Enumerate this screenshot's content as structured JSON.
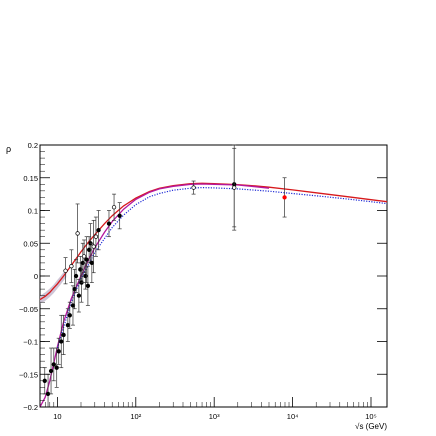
{
  "chart_data": {
    "type": "scatter",
    "title": "",
    "ylabel": "ρ",
    "xlabel": "√s (GeV)",
    "xscale": "log",
    "xlim": [
      6,
      160000
    ],
    "ylim": [
      -0.2,
      0.2
    ],
    "grid": false,
    "legend": "none",
    "y_ticks": [
      {
        "value": -0.2,
        "label": "−0.2"
      },
      {
        "value": -0.15,
        "label": "−0.15"
      },
      {
        "value": -0.1,
        "label": "−0.1"
      },
      {
        "value": -0.05,
        "label": "−0.05"
      },
      {
        "value": 0,
        "label": "0"
      },
      {
        "value": 0.05,
        "label": "0.05"
      },
      {
        "value": 0.1,
        "label": "0.1"
      },
      {
        "value": 0.15,
        "label": "0.15"
      },
      {
        "value": 0.2,
        "label": "0.2"
      }
    ],
    "x_ticks": [
      {
        "value": 10,
        "label": "10"
      },
      {
        "value": 100,
        "label": "10²"
      },
      {
        "value": 1000,
        "label": "10³"
      },
      {
        "value": 10000,
        "label": "10⁴"
      },
      {
        "value": 100000,
        "label": "10⁵"
      }
    ],
    "colors": {
      "axis": "#000000",
      "model_red": "#d7191c",
      "model_magenta": "#b5179e",
      "model_blue_dotted": "#1f2bd6",
      "band": "#c9bfd3",
      "data_filled": "#000000",
      "data_open": "#ffffff",
      "data_highlight": "#ff0000"
    },
    "series": [
      {
        "style": "solid",
        "color_key": "model_red",
        "x": [
          6,
          7,
          8,
          9,
          10,
          12,
          15,
          20,
          25,
          30,
          40,
          50,
          70,
          100,
          150,
          200,
          300,
          500,
          700,
          1000,
          2000,
          3000,
          5000,
          10000,
          20000,
          50000,
          100000,
          160000
        ],
        "y": [
          -0.036,
          -0.031,
          -0.025,
          -0.018,
          -0.012,
          0.0,
          0.016,
          0.037,
          0.052,
          0.063,
          0.08,
          0.092,
          0.107,
          0.119,
          0.129,
          0.134,
          0.138,
          0.141,
          0.1415,
          0.141,
          0.1395,
          0.138,
          0.1355,
          0.1315,
          0.127,
          0.121,
          0.1165,
          0.1135
        ]
      },
      {
        "style": "solid",
        "color_key": "model_magenta",
        "x": [
          6,
          7,
          8,
          9,
          10,
          12,
          15,
          20,
          25,
          30,
          40,
          50,
          70,
          100,
          150,
          200,
          300,
          500,
          700,
          1000,
          2000,
          3000,
          5000
        ],
        "y": [
          -0.205,
          -0.185,
          -0.16,
          -0.133,
          -0.108,
          -0.07,
          -0.035,
          0.0,
          0.025,
          0.043,
          0.067,
          0.083,
          0.102,
          0.117,
          0.128,
          0.133,
          0.137,
          0.14,
          0.1405,
          0.14,
          0.139,
          0.137,
          0.134
        ]
      },
      {
        "style": "dotted",
        "color_key": "model_blue_dotted",
        "x": [
          10,
          15,
          20,
          30,
          50,
          70,
          100,
          150,
          200,
          300,
          500,
          700,
          1000,
          2000,
          3000,
          5000,
          10000,
          20000,
          50000,
          100000,
          160000
        ],
        "y": [
          -0.11,
          -0.04,
          -0.004,
          0.036,
          0.074,
          0.093,
          0.109,
          0.121,
          0.126,
          0.131,
          0.134,
          0.135,
          0.1345,
          0.133,
          0.1315,
          0.1295,
          0.126,
          0.1225,
          0.1175,
          0.1135,
          0.1105
        ]
      }
    ],
    "band": {
      "color_key": "band",
      "x": [
        6,
        7,
        8,
        9,
        10,
        11,
        12,
        13
      ],
      "y_low": [
        -0.042,
        -0.038,
        -0.032,
        -0.026,
        -0.019,
        -0.013,
        -0.007,
        -0.002
      ],
      "y_high": [
        -0.03,
        -0.025,
        -0.019,
        -0.013,
        -0.006,
        0.0,
        0.006,
        0.011
      ]
    },
    "points": [
      {
        "x": 6.9,
        "y": -0.16,
        "err": 0.02,
        "marker": "filled"
      },
      {
        "x": 7.6,
        "y": -0.18,
        "err": 0.03,
        "marker": "filled"
      },
      {
        "x": 8.3,
        "y": -0.145,
        "err": 0.035,
        "marker": "filled"
      },
      {
        "x": 9.0,
        "y": -0.135,
        "err": 0.025,
        "marker": "filled"
      },
      {
        "x": 9.8,
        "y": -0.14,
        "err": 0.03,
        "marker": "filled"
      },
      {
        "x": 10.4,
        "y": -0.115,
        "err": 0.02,
        "marker": "filled"
      },
      {
        "x": 11.2,
        "y": -0.1,
        "err": 0.04,
        "marker": "filled"
      },
      {
        "x": 12.0,
        "y": -0.09,
        "err": 0.03,
        "marker": "filled"
      },
      {
        "x": 12.7,
        "y": 0.008,
        "err": 0.02,
        "marker": "open"
      },
      {
        "x": 13.6,
        "y": -0.075,
        "err": 0.025,
        "marker": "filled"
      },
      {
        "x": 14.4,
        "y": -0.06,
        "err": 0.02,
        "marker": "filled"
      },
      {
        "x": 15.1,
        "y": 0.015,
        "err": 0.025,
        "marker": "open"
      },
      {
        "x": 15.8,
        "y": -0.045,
        "err": 0.03,
        "marker": "filled"
      },
      {
        "x": 16.6,
        "y": -0.02,
        "err": 0.03,
        "marker": "filled"
      },
      {
        "x": 17.3,
        "y": 0.0,
        "err": 0.025,
        "marker": "filled"
      },
      {
        "x": 18.1,
        "y": 0.065,
        "err": 0.045,
        "marker": "open"
      },
      {
        "x": 18.8,
        "y": -0.03,
        "err": 0.025,
        "marker": "filled"
      },
      {
        "x": 19.6,
        "y": 0.01,
        "err": 0.02,
        "marker": "filled"
      },
      {
        "x": 20.3,
        "y": -0.01,
        "err": 0.03,
        "marker": "filled"
      },
      {
        "x": 21.1,
        "y": 0.02,
        "err": 0.03,
        "marker": "filled"
      },
      {
        "x": 21.9,
        "y": 0.03,
        "err": 0.025,
        "marker": "open"
      },
      {
        "x": 22.8,
        "y": 0.0,
        "err": 0.02,
        "marker": "filled"
      },
      {
        "x": 23.6,
        "y": 0.025,
        "err": 0.035,
        "marker": "filled"
      },
      {
        "x": 24.5,
        "y": -0.015,
        "err": 0.03,
        "marker": "filled"
      },
      {
        "x": 25.4,
        "y": 0.04,
        "err": 0.02,
        "marker": "filled"
      },
      {
        "x": 26.4,
        "y": 0.05,
        "err": 0.03,
        "marker": "filled"
      },
      {
        "x": 27.5,
        "y": 0.02,
        "err": 0.03,
        "marker": "filled"
      },
      {
        "x": 29.0,
        "y": 0.045,
        "err": 0.04,
        "marker": "open"
      },
      {
        "x": 31.0,
        "y": 0.06,
        "err": 0.03,
        "marker": "open"
      },
      {
        "x": 33.5,
        "y": 0.07,
        "err": 0.03,
        "marker": "filled"
      },
      {
        "x": 45.5,
        "y": 0.08,
        "err": 0.02,
        "marker": "filled"
      },
      {
        "x": 52.8,
        "y": 0.105,
        "err": 0.02,
        "marker": "open"
      },
      {
        "x": 62.3,
        "y": 0.092,
        "err": 0.02,
        "marker": "filled"
      },
      {
        "x": 546,
        "y": 0.135,
        "err": 0.01,
        "marker": "open"
      },
      {
        "x": 1800,
        "y": 0.14,
        "err": 0.07,
        "marker": "filled"
      },
      {
        "x": 1800,
        "y": 0.135,
        "err": 0.06,
        "marker": "open"
      },
      {
        "x": 7900,
        "y": 0.12,
        "err": 0.03,
        "marker": "highlight"
      }
    ]
  }
}
